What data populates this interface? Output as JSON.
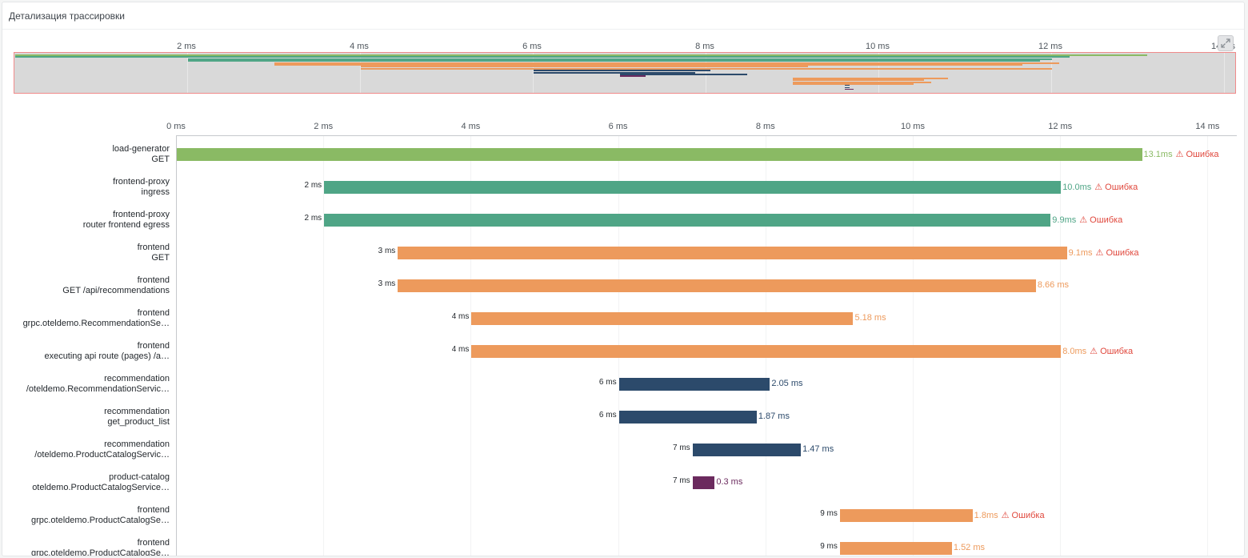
{
  "panel": {
    "title": "Детализация трассировки"
  },
  "colors": {
    "load-generator": "#8aba64",
    "frontend-proxy": "#4fa586",
    "frontend": "#ed9a5c",
    "recommendation": "#2c4a6b",
    "product-catalog": "#6b2a5e",
    "error": "#e0483d"
  },
  "icons": {
    "expand": "expand-icon",
    "warning": "warning-icon"
  },
  "timeline": {
    "max_ms": 14.4,
    "main_ticks": [
      "0 ms",
      "2 ms",
      "4 ms",
      "6 ms",
      "8 ms",
      "10 ms",
      "12 ms",
      "14 ms"
    ],
    "minimap_ticks": [
      "2 ms",
      "4 ms",
      "6 ms",
      "8 ms",
      "10 ms",
      "12 ms",
      "14 ms"
    ]
  },
  "spans": [
    {
      "service": "load-generator",
      "operation": "GET",
      "start_ms": 0,
      "duration_ms": 13.1,
      "start_label": "",
      "duration_label": "13.1ms",
      "error": true,
      "error_label": "⚠ Ошибка"
    },
    {
      "service": "frontend-proxy",
      "operation": "ingress",
      "start_ms": 2.0,
      "duration_ms": 10.0,
      "start_label": "2 ms",
      "duration_label": "10.0ms",
      "error": true,
      "error_label": "⚠ Ошибка"
    },
    {
      "service": "frontend-proxy",
      "operation": "router frontend egress",
      "start_ms": 2.0,
      "duration_ms": 9.86,
      "start_label": "2 ms",
      "duration_label": "9.9ms",
      "error": true,
      "error_label": "⚠ Ошибка"
    },
    {
      "service": "frontend",
      "operation": "GET",
      "start_ms": 3.0,
      "duration_ms": 9.08,
      "start_label": "3 ms",
      "duration_label": "9.1ms",
      "error": true,
      "error_label": "⚠ Ошибка"
    },
    {
      "service": "frontend",
      "operation": "GET /api/recommendations",
      "start_ms": 3.0,
      "duration_ms": 8.66,
      "start_label": "3 ms",
      "duration_label": "8.66 ms",
      "error": false,
      "error_label": ""
    },
    {
      "service": "frontend",
      "operation": "grpc.oteldemo.RecommendationSe…",
      "start_ms": 4.0,
      "duration_ms": 5.18,
      "start_label": "4 ms",
      "duration_label": "5.18 ms",
      "error": false,
      "error_label": ""
    },
    {
      "service": "frontend",
      "operation": "executing api route (pages) /a…",
      "start_ms": 4.0,
      "duration_ms": 8.0,
      "start_label": "4 ms",
      "duration_label": "8.0ms",
      "error": true,
      "error_label": "⚠ Ошибка"
    },
    {
      "service": "recommendation",
      "operation": "/oteldemo.RecommendationServic…",
      "start_ms": 6.0,
      "duration_ms": 2.05,
      "start_label": "6 ms",
      "duration_label": "2.05 ms",
      "error": false,
      "error_label": ""
    },
    {
      "service": "recommendation",
      "operation": "get_product_list",
      "start_ms": 6.0,
      "duration_ms": 1.87,
      "start_label": "6 ms",
      "duration_label": "1.87 ms",
      "error": false,
      "error_label": ""
    },
    {
      "service": "recommendation",
      "operation": "/oteldemo.ProductCatalogServic…",
      "start_ms": 7.0,
      "duration_ms": 1.47,
      "start_label": "7 ms",
      "duration_label": "1.47 ms",
      "error": false,
      "error_label": ""
    },
    {
      "service": "product-catalog",
      "operation": "oteldemo.ProductCatalogService…",
      "start_ms": 7.0,
      "duration_ms": 0.3,
      "start_label": "7 ms",
      "duration_label": "0.3 ms",
      "error": false,
      "error_label": ""
    },
    {
      "service": "frontend",
      "operation": "grpc.oteldemo.ProductCatalogSe…",
      "start_ms": 9.0,
      "duration_ms": 1.8,
      "start_label": "9 ms",
      "duration_label": "1.8ms",
      "error": true,
      "error_label": "⚠ Ошибка"
    },
    {
      "service": "frontend",
      "operation": "grpc.oteldemo.ProductCatalogSe…",
      "start_ms": 9.0,
      "duration_ms": 1.52,
      "start_label": "9 ms",
      "duration_label": "1.52 ms",
      "error": false,
      "error_label": ""
    }
  ],
  "minimap_spans": [
    {
      "service": "load-generator",
      "start_ms": 0,
      "duration_ms": 13.1
    },
    {
      "service": "frontend-proxy",
      "start_ms": 0,
      "duration_ms": 12.2
    },
    {
      "service": "frontend-proxy",
      "start_ms": 2.0,
      "duration_ms": 10.0
    },
    {
      "service": "frontend-proxy",
      "start_ms": 2.0,
      "duration_ms": 9.86
    },
    {
      "service": "frontend",
      "start_ms": 3.0,
      "duration_ms": 9.08
    },
    {
      "service": "frontend",
      "start_ms": 3.0,
      "duration_ms": 8.66
    },
    {
      "service": "frontend",
      "start_ms": 4.0,
      "duration_ms": 5.18
    },
    {
      "service": "frontend",
      "start_ms": 4.0,
      "duration_ms": 8.0
    },
    {
      "service": "recommendation",
      "start_ms": 6.0,
      "duration_ms": 2.05
    },
    {
      "service": "recommendation",
      "start_ms": 6.0,
      "duration_ms": 1.87
    },
    {
      "service": "recommendation",
      "start_ms": 7.0,
      "duration_ms": 1.47
    },
    {
      "service": "product-catalog",
      "start_ms": 7.0,
      "duration_ms": 0.3
    },
    {
      "service": "frontend",
      "start_ms": 9.0,
      "duration_ms": 1.8
    },
    {
      "service": "frontend",
      "start_ms": 9.0,
      "duration_ms": 1.52
    },
    {
      "service": "frontend",
      "start_ms": 9.0,
      "duration_ms": 1.6
    },
    {
      "service": "frontend",
      "start_ms": 9.0,
      "duration_ms": 1.4
    },
    {
      "service": "recommendation",
      "start_ms": 9.6,
      "duration_ms": 0.06
    },
    {
      "service": "recommendation",
      "start_ms": 9.6,
      "duration_ms": 0.06
    },
    {
      "service": "product-catalog",
      "start_ms": 9.6,
      "duration_ms": 0.1
    }
  ]
}
